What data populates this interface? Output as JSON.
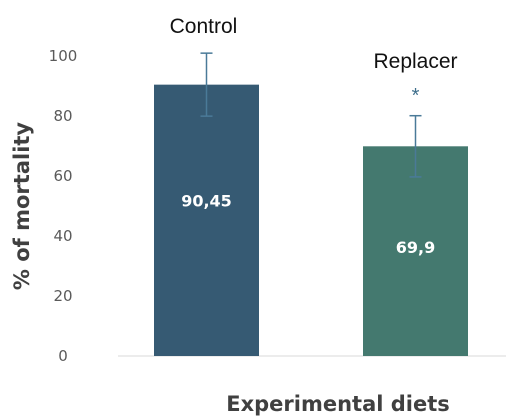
{
  "chart_data": {
    "type": "bar",
    "categories": [
      "Control",
      "Replacer"
    ],
    "values": [
      90.45,
      69.9
    ],
    "value_labels": [
      "90,45",
      "69,9"
    ],
    "errors": [
      10.5,
      10.2
    ],
    "significance": [
      "",
      "*"
    ],
    "colors": [
      "#365a73",
      "#44796f"
    ],
    "title": "",
    "xlabel": "Experimental diets",
    "ylabel": "% of mortality",
    "ylim": [
      0,
      100
    ],
    "yticks": [
      "0",
      "20",
      "40",
      "60",
      "80",
      "100"
    ],
    "grid": false,
    "legend": "none"
  }
}
